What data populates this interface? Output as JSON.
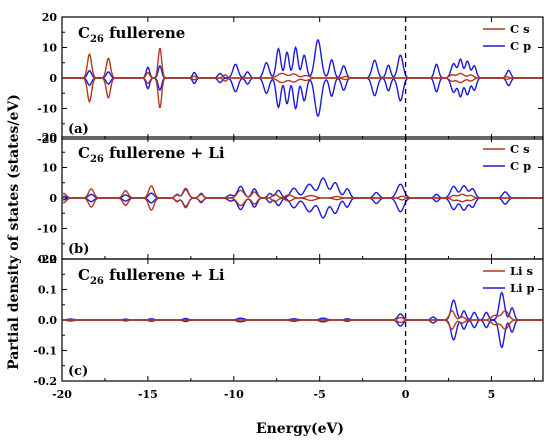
{
  "figure": {
    "ylabel": "Partial density of states (states/eV)",
    "xlabel": "Energy(eV)"
  },
  "colors": {
    "s": "#b03a1f",
    "p": "#1a1adb",
    "fermi": "#000000"
  },
  "chart_data": [
    {
      "type": "line",
      "panel": "(a)",
      "title_main": "C",
      "title_sub": "26",
      "title_rest": " fullerene",
      "xlim": [
        -20,
        8
      ],
      "ylim": [
        -20,
        20
      ],
      "xticks": [
        -20,
        -15,
        -10,
        -5,
        0,
        5
      ],
      "yticks": [
        "-20",
        "-10",
        "0",
        "10",
        "20"
      ],
      "ytick_values": [
        -20,
        -10,
        0,
        10,
        20
      ],
      "fermi": 0,
      "series": [
        {
          "name": "C s",
          "key": "s",
          "peaks": [
            [
              -18.4,
              7.8,
              0.12
            ],
            [
              -17.3,
              6.5,
              0.12
            ],
            [
              -15.0,
              1.8,
              0.1
            ],
            [
              -14.3,
              9.8,
              0.1
            ],
            [
              -12.3,
              0.6,
              0.1
            ],
            [
              -10.5,
              1.0,
              0.12
            ],
            [
              -7.2,
              1.5,
              0.25
            ],
            [
              -6.5,
              1.3,
              0.2
            ],
            [
              -5.8,
              0.8,
              0.2
            ],
            [
              -3.5,
              0.5,
              0.15
            ],
            [
              2.7,
              1.0,
              0.15
            ],
            [
              3.2,
              1.5,
              0.2
            ],
            [
              3.8,
              1.0,
              0.15
            ],
            [
              5.9,
              0.4,
              0.12
            ]
          ]
        },
        {
          "name": "C p",
          "key": "p",
          "peaks": [
            [
              -18.4,
              2.4,
              0.12
            ],
            [
              -17.3,
              2.0,
              0.12
            ],
            [
              -15.0,
              3.5,
              0.1
            ],
            [
              -14.3,
              4.0,
              0.1
            ],
            [
              -12.3,
              1.8,
              0.1
            ],
            [
              -10.8,
              1.5,
              0.12
            ],
            [
              -9.9,
              4.5,
              0.15
            ],
            [
              -9.2,
              2.0,
              0.12
            ],
            [
              -8.1,
              5.0,
              0.15
            ],
            [
              -7.4,
              9.6,
              0.13
            ],
            [
              -6.9,
              8.5,
              0.12
            ],
            [
              -6.4,
              10.0,
              0.13
            ],
            [
              -5.9,
              7.5,
              0.13
            ],
            [
              -5.1,
              12.5,
              0.18
            ],
            [
              -4.3,
              6.0,
              0.13
            ],
            [
              -3.6,
              4.0,
              0.13
            ],
            [
              -1.8,
              5.8,
              0.15
            ],
            [
              -1.0,
              4.2,
              0.12
            ],
            [
              -0.3,
              7.5,
              0.15
            ],
            [
              1.8,
              4.5,
              0.12
            ],
            [
              2.8,
              4.7,
              0.15
            ],
            [
              3.2,
              6.0,
              0.12
            ],
            [
              3.6,
              5.5,
              0.13
            ],
            [
              4.0,
              4.0,
              0.12
            ],
            [
              6.0,
              2.5,
              0.12
            ]
          ]
        }
      ],
      "legend": [
        "C s",
        "C p"
      ]
    },
    {
      "type": "line",
      "panel": "(b)",
      "title_main": "C",
      "title_sub": "26",
      "title_rest": " fullerene + Li",
      "xlim": [
        -20,
        8
      ],
      "ylim": [
        -20,
        20
      ],
      "xticks": [
        -20,
        -15,
        -10,
        -5,
        0,
        5
      ],
      "yticks": [
        "-20",
        "-10",
        "0",
        "10",
        "20"
      ],
      "ytick_values": [
        -20,
        -10,
        0,
        10,
        20
      ],
      "fermi": 0,
      "series": [
        {
          "name": "C s",
          "key": "s",
          "peaks": [
            [
              -19.9,
              1.5,
              0.15
            ],
            [
              -18.3,
              3.0,
              0.15
            ],
            [
              -16.3,
              2.4,
              0.15
            ],
            [
              -14.8,
              4.0,
              0.15
            ],
            [
              -13.3,
              1.0,
              0.12
            ],
            [
              -12.8,
              3.2,
              0.15
            ],
            [
              -11.9,
              1.2,
              0.12
            ],
            [
              -9.6,
              2.5,
              0.2
            ],
            [
              -8.8,
              2.0,
              0.15
            ],
            [
              -7.6,
              1.2,
              0.15
            ],
            [
              -6.8,
              1.0,
              0.2
            ],
            [
              -5.5,
              0.8,
              0.25
            ],
            [
              -4.0,
              0.5,
              0.2
            ],
            [
              -0.2,
              0.6,
              0.15
            ],
            [
              2.8,
              0.8,
              0.15
            ],
            [
              3.3,
              1.2,
              0.2
            ],
            [
              3.8,
              0.8,
              0.15
            ]
          ]
        },
        {
          "name": "C p",
          "key": "p",
          "peaks": [
            [
              -19.9,
              0.6,
              0.15
            ],
            [
              -18.3,
              1.2,
              0.15
            ],
            [
              -16.3,
              1.0,
              0.15
            ],
            [
              -14.8,
              1.6,
              0.15
            ],
            [
              -13.3,
              1.2,
              0.12
            ],
            [
              -12.8,
              2.8,
              0.15
            ],
            [
              -11.9,
              1.5,
              0.12
            ],
            [
              -10.2,
              1.0,
              0.15
            ],
            [
              -9.6,
              3.8,
              0.18
            ],
            [
              -8.8,
              3.0,
              0.15
            ],
            [
              -7.9,
              1.5,
              0.12
            ],
            [
              -7.4,
              2.5,
              0.15
            ],
            [
              -6.5,
              3.2,
              0.2
            ],
            [
              -5.6,
              4.5,
              0.25
            ],
            [
              -4.8,
              6.5,
              0.22
            ],
            [
              -4.1,
              5.0,
              0.2
            ],
            [
              -3.4,
              3.0,
              0.15
            ],
            [
              -1.7,
              1.8,
              0.15
            ],
            [
              -0.3,
              4.5,
              0.2
            ],
            [
              1.8,
              1.2,
              0.12
            ],
            [
              2.8,
              3.8,
              0.18
            ],
            [
              3.4,
              4.0,
              0.18
            ],
            [
              3.9,
              3.0,
              0.15
            ],
            [
              5.8,
              2.0,
              0.15
            ]
          ]
        }
      ],
      "legend": [
        "C s",
        "C p"
      ]
    },
    {
      "type": "line",
      "panel": "(c)",
      "title_main": "C",
      "title_sub": "26",
      "title_rest": " fullerene + Li",
      "xlim": [
        -20,
        8
      ],
      "ylim": [
        -0.2,
        0.2
      ],
      "xticks": [
        -20,
        -15,
        -10,
        -5,
        0,
        5
      ],
      "yticks": [
        "-0.2",
        "-0.1",
        "0.0",
        "0.1",
        "0.2"
      ],
      "ytick_values": [
        -0.2,
        -0.1,
        0,
        0.1,
        0.2
      ],
      "fermi": 0,
      "series": [
        {
          "name": "Li s",
          "key": "s",
          "peaks": [
            [
              -0.3,
              0.008,
              0.15
            ],
            [
              2.7,
              0.03,
              0.15
            ],
            [
              3.3,
              0.01,
              0.15
            ],
            [
              5.2,
              0.015,
              0.2
            ],
            [
              5.8,
              0.03,
              0.2
            ]
          ]
        },
        {
          "name": "Li p",
          "key": "p",
          "peaks": [
            [
              -19.5,
              0.003,
              0.2
            ],
            [
              -16.3,
              0.003,
              0.15
            ],
            [
              -14.8,
              0.004,
              0.15
            ],
            [
              -12.8,
              0.005,
              0.15
            ],
            [
              -9.6,
              0.006,
              0.2
            ],
            [
              -6.5,
              0.004,
              0.2
            ],
            [
              -4.8,
              0.006,
              0.2
            ],
            [
              -3.4,
              0.004,
              0.15
            ],
            [
              -0.3,
              0.02,
              0.15
            ],
            [
              1.6,
              0.01,
              0.12
            ],
            [
              2.8,
              0.065,
              0.15
            ],
            [
              3.4,
              0.03,
              0.12
            ],
            [
              4.0,
              0.025,
              0.12
            ],
            [
              4.7,
              0.025,
              0.12
            ],
            [
              5.6,
              0.09,
              0.15
            ],
            [
              6.2,
              0.04,
              0.12
            ]
          ]
        }
      ],
      "legend": [
        "Li s",
        "Li p"
      ]
    }
  ]
}
